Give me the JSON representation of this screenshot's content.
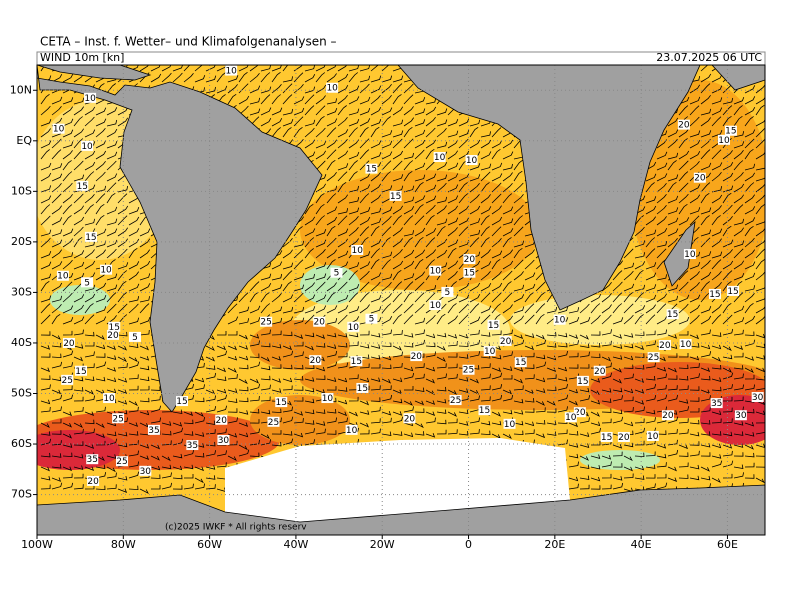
{
  "header": {
    "title": "CETA – Inst. f. Wetter– und Klimafolgenanalysen –",
    "field": "WIND 10m [kn]",
    "date": "23.07.2025 06 UTC"
  },
  "map": {
    "lon_range": [
      -100,
      68.7
    ],
    "lat_range": [
      15,
      -78
    ],
    "xticks": [
      {
        "value": -100,
        "label": "100W"
      },
      {
        "value": -80,
        "label": "80W"
      },
      {
        "value": -60,
        "label": "60W"
      },
      {
        "value": -40,
        "label": "40W"
      },
      {
        "value": -20,
        "label": "20W"
      },
      {
        "value": 0,
        "label": "0"
      },
      {
        "value": 20,
        "label": "20E"
      },
      {
        "value": 40,
        "label": "40E"
      },
      {
        "value": 60,
        "label": "60E"
      }
    ],
    "yticks": [
      {
        "value": 10,
        "label": "10N"
      },
      {
        "value": 0,
        "label": "EQ"
      },
      {
        "value": -10,
        "label": "10S"
      },
      {
        "value": -20,
        "label": "20S"
      },
      {
        "value": -30,
        "label": "30S"
      },
      {
        "value": -40,
        "label": "40S"
      },
      {
        "value": -50,
        "label": "50S"
      },
      {
        "value": -60,
        "label": "60S"
      },
      {
        "value": -70,
        "label": "70S"
      }
    ],
    "labels": [
      {
        "lon": -55,
        "lat": 13.9,
        "value": 10
      },
      {
        "lon": -87.7,
        "lat": 8.5,
        "value": 10
      },
      {
        "lon": -31.6,
        "lat": 10.5,
        "value": 10
      },
      {
        "lon": -95,
        "lat": 2.4,
        "value": 10
      },
      {
        "lon": -88.4,
        "lat": -1,
        "value": 10
      },
      {
        "lon": -89.5,
        "lat": -8.9,
        "value": 15
      },
      {
        "lon": -87.5,
        "lat": -19,
        "value": 15
      },
      {
        "lon": -84,
        "lat": -25.5,
        "value": 10
      },
      {
        "lon": -94,
        "lat": -26.7,
        "value": 10
      },
      {
        "lon": -88.4,
        "lat": -28,
        "value": 5
      },
      {
        "lon": -22.5,
        "lat": -5.5,
        "value": 15
      },
      {
        "lon": -16.9,
        "lat": -10.9,
        "value": 15
      },
      {
        "lon": -6.7,
        "lat": -3.2,
        "value": 10
      },
      {
        "lon": 0.7,
        "lat": -3.8,
        "value": 10
      },
      {
        "lon": -25.8,
        "lat": -21.6,
        "value": 10
      },
      {
        "lon": -30.6,
        "lat": -26.1,
        "value": 5
      },
      {
        "lon": -7.7,
        "lat": -25.7,
        "value": 10
      },
      {
        "lon": 0.2,
        "lat": -26.1,
        "value": 15
      },
      {
        "lon": 0.2,
        "lat": -23.4,
        "value": 20
      },
      {
        "lon": -7.7,
        "lat": -32.5,
        "value": 10
      },
      {
        "lon": -4.9,
        "lat": -29.9,
        "value": 5
      },
      {
        "lon": 49.9,
        "lat": 3.2,
        "value": 20
      },
      {
        "lon": 60.8,
        "lat": 2,
        "value": 15
      },
      {
        "lon": 59.2,
        "lat": 0.2,
        "value": 10
      },
      {
        "lon": 53.6,
        "lat": -7.3,
        "value": 20
      },
      {
        "lon": 51.3,
        "lat": -22.4,
        "value": 10
      },
      {
        "lon": 57.1,
        "lat": -30.3,
        "value": 15
      },
      {
        "lon": 61.3,
        "lat": -29.7,
        "value": 15
      },
      {
        "lon": 47.3,
        "lat": -34.3,
        "value": 15
      },
      {
        "lon": 50.3,
        "lat": -40.2,
        "value": 10
      },
      {
        "lon": 45.5,
        "lat": -40.4,
        "value": 20
      },
      {
        "lon": 42.9,
        "lat": -42.8,
        "value": 25
      },
      {
        "lon": 21.1,
        "lat": -35.4,
        "value": 10
      },
      {
        "lon": 5.8,
        "lat": -36.4,
        "value": 15
      },
      {
        "lon": 8.6,
        "lat": -39.6,
        "value": 20
      },
      {
        "lon": 4.9,
        "lat": -41.6,
        "value": 10
      },
      {
        "lon": 12.1,
        "lat": -43.8,
        "value": 15
      },
      {
        "lon": -12.1,
        "lat": -42.6,
        "value": 20
      },
      {
        "lon": 0,
        "lat": -45.3,
        "value": 25
      },
      {
        "lon": -3,
        "lat": -51.3,
        "value": 25
      },
      {
        "lon": 3.7,
        "lat": -53.3,
        "value": 15
      },
      {
        "lon": 9.5,
        "lat": -56,
        "value": 10
      },
      {
        "lon": -13.7,
        "lat": -54.9,
        "value": 20
      },
      {
        "lon": 26.5,
        "lat": -47.5,
        "value": 15
      },
      {
        "lon": 30.4,
        "lat": -45.5,
        "value": 20
      },
      {
        "lon": 25.8,
        "lat": -53.7,
        "value": 20
      },
      {
        "lon": 23.7,
        "lat": -54.7,
        "value": 10
      },
      {
        "lon": 32,
        "lat": -58.6,
        "value": 15
      },
      {
        "lon": 36,
        "lat": -58.6,
        "value": 20
      },
      {
        "lon": 42.7,
        "lat": -58.4,
        "value": 10
      },
      {
        "lon": 46.2,
        "lat": -54.3,
        "value": 20
      },
      {
        "lon": 57.5,
        "lat": -51.9,
        "value": 35
      },
      {
        "lon": 63.1,
        "lat": -54.3,
        "value": 30
      },
      {
        "lon": 67,
        "lat": -50.7,
        "value": 30
      },
      {
        "lon": -46.9,
        "lat": -35.8,
        "value": 25
      },
      {
        "lon": -34.6,
        "lat": -35.8,
        "value": 20
      },
      {
        "lon": -26.7,
        "lat": -36.8,
        "value": 10
      },
      {
        "lon": -22.5,
        "lat": -35.2,
        "value": 5
      },
      {
        "lon": -35.5,
        "lat": -43.4,
        "value": 20
      },
      {
        "lon": -26,
        "lat": -43.6,
        "value": 15
      },
      {
        "lon": -24.6,
        "lat": -48.9,
        "value": 15
      },
      {
        "lon": -32.7,
        "lat": -50.9,
        "value": 10
      },
      {
        "lon": -43.4,
        "lat": -51.7,
        "value": 15
      },
      {
        "lon": -45.2,
        "lat": -55.6,
        "value": 25
      },
      {
        "lon": -57.3,
        "lat": -55.2,
        "value": 20
      },
      {
        "lon": -66.4,
        "lat": -51.5,
        "value": 15
      },
      {
        "lon": -56.8,
        "lat": -59.2,
        "value": 30
      },
      {
        "lon": -64,
        "lat": -60.2,
        "value": 35
      },
      {
        "lon": -72.9,
        "lat": -57.2,
        "value": 35
      },
      {
        "lon": -81.2,
        "lat": -54.9,
        "value": 25
      },
      {
        "lon": -83.3,
        "lat": -50.9,
        "value": 10
      },
      {
        "lon": -89.8,
        "lat": -45.5,
        "value": 15
      },
      {
        "lon": -93,
        "lat": -47.3,
        "value": 25
      },
      {
        "lon": -92.6,
        "lat": -40,
        "value": 20
      },
      {
        "lon": -82.1,
        "lat": -36.8,
        "value": 15
      },
      {
        "lon": -82.4,
        "lat": -38.4,
        "value": 20
      },
      {
        "lon": -77.3,
        "lat": -38.8,
        "value": 5
      },
      {
        "lon": -87.2,
        "lat": -63,
        "value": 35
      },
      {
        "lon": -80.3,
        "lat": -63.4,
        "value": 25
      },
      {
        "lon": -74.9,
        "lat": -65.3,
        "value": 30
      },
      {
        "lon": -87,
        "lat": -67.3,
        "value": 20
      },
      {
        "lon": -27.1,
        "lat": -57.2,
        "value": 10
      }
    ],
    "copyright": "(c)2025 IWKF * All rights reserv"
  }
}
